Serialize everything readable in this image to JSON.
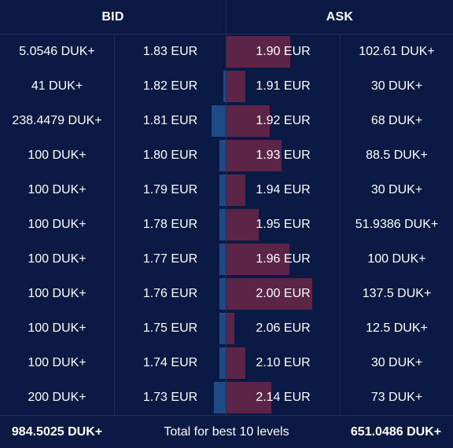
{
  "header": {
    "bid_label": "BID",
    "ask_label": "ASK"
  },
  "colors": {
    "background": "#0b1a45",
    "bid_bar": "#1d4b86",
    "ask_bar": "#5c2446",
    "divider": "#1d2e63"
  },
  "levels": [
    {
      "bid_qty": "5.0546 DUK+",
      "bid_price": "1.83 EUR",
      "ask_price": "1.90 EUR",
      "ask_qty": "102.61 DUK+",
      "bid_depth": 0.0,
      "ask_depth": 0.58
    },
    {
      "bid_qty": "41 DUK+",
      "bid_price": "1.82 EUR",
      "ask_price": "1.91 EUR",
      "ask_qty": "30 DUK+",
      "bid_depth": 0.02,
      "ask_depth": 0.17
    },
    {
      "bid_qty": "238.4479 DUK+",
      "bid_price": "1.81 EUR",
      "ask_price": "1.92 EUR",
      "ask_qty": "68 DUK+",
      "bid_depth": 0.13,
      "ask_depth": 0.39
    },
    {
      "bid_qty": "100 DUK+",
      "bid_price": "1.80 EUR",
      "ask_price": "1.93 EUR",
      "ask_qty": "88.5 DUK+",
      "bid_depth": 0.06,
      "ask_depth": 0.5
    },
    {
      "bid_qty": "100 DUK+",
      "bid_price": "1.79 EUR",
      "ask_price": "1.94 EUR",
      "ask_qty": "30 DUK+",
      "bid_depth": 0.06,
      "ask_depth": 0.17
    },
    {
      "bid_qty": "100 DUK+",
      "bid_price": "1.78 EUR",
      "ask_price": "1.95 EUR",
      "ask_qty": "51.9386 DUK+",
      "bid_depth": 0.06,
      "ask_depth": 0.29
    },
    {
      "bid_qty": "100 DUK+",
      "bid_price": "1.77 EUR",
      "ask_price": "1.96 EUR",
      "ask_qty": "100 DUK+",
      "bid_depth": 0.06,
      "ask_depth": 0.57
    },
    {
      "bid_qty": "100 DUK+",
      "bid_price": "1.76 EUR",
      "ask_price": "2.00 EUR",
      "ask_qty": "137.5 DUK+",
      "bid_depth": 0.06,
      "ask_depth": 0.78
    },
    {
      "bid_qty": "100 DUK+",
      "bid_price": "1.75 EUR",
      "ask_price": "2.06 EUR",
      "ask_qty": "12.5 DUK+",
      "bid_depth": 0.06,
      "ask_depth": 0.07
    },
    {
      "bid_qty": "100 DUK+",
      "bid_price": "1.74 EUR",
      "ask_price": "2.10 EUR",
      "ask_qty": "30 DUK+",
      "bid_depth": 0.06,
      "ask_depth": 0.17
    },
    {
      "bid_qty": "200 DUK+",
      "bid_price": "1.73 EUR",
      "ask_price": "2.14 EUR",
      "ask_qty": "73 DUK+",
      "bid_depth": 0.11,
      "ask_depth": 0.41
    }
  ],
  "footer": {
    "bid_total": "984.5025 DUK+",
    "label": "Total for best 10 levels",
    "ask_total": "651.0486 DUK+"
  }
}
